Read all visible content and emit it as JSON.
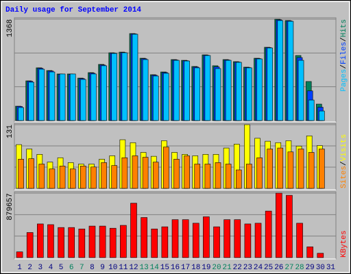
{
  "chart_data": [
    {
      "type": "bar",
      "title": "Daily usage for September 2014",
      "legend_separator": "/",
      "ylim": [
        0,
        1368
      ],
      "yticks": [
        1368
      ],
      "series": [
        {
          "name": "Hits",
          "color": "#00805c",
          "values": [
            194,
            536,
            712,
            675,
            629,
            629,
            573,
            647,
            758,
            915,
            924,
            1174,
            841,
            619,
            656,
            823,
            813,
            730,
            887,
            740,
            823,
            795,
            721,
            841,
            989,
            1368,
            1350,
            878,
            527,
            222,
            null
          ]
        },
        {
          "name": "Files",
          "color": "#0040ff",
          "values": [
            190,
            530,
            705,
            668,
            622,
            622,
            566,
            640,
            750,
            910,
            918,
            1170,
            834,
            612,
            648,
            818,
            808,
            722,
            882,
            724,
            818,
            790,
            716,
            836,
            985,
            1359,
            1345,
            850,
            400,
            180,
            null
          ]
        },
        {
          "name": "Pages",
          "color": "#00c0ff",
          "values": [
            176,
            518,
            693,
            656,
            629,
            629,
            555,
            629,
            740,
            906,
            915,
            1165,
            823,
            601,
            638,
            813,
            804,
            712,
            878,
            702,
            813,
            786,
            712,
            832,
            980,
            1350,
            1340,
            813,
            277,
            129,
            null
          ]
        }
      ]
    },
    {
      "type": "bar",
      "legend_separator": "/",
      "ylim": [
        0,
        131
      ],
      "yticks": [
        131
      ],
      "series": [
        {
          "name": "Visits",
          "color": "#ffff00",
          "values": [
            90,
            81,
            70,
            54,
            63,
            53,
            50,
            50,
            60,
            67,
            100,
            94,
            74,
            66,
            98,
            74,
            70,
            67,
            70,
            70,
            83,
            91,
            131,
            103,
            97,
            94,
            98,
            87,
            108,
            88,
            null
          ]
        },
        {
          "name": "Sites",
          "color": "#ff8000",
          "values": [
            60,
            61,
            50,
            40,
            46,
            40,
            46,
            44,
            53,
            47,
            63,
            67,
            64,
            54,
            85,
            60,
            67,
            50,
            50,
            53,
            50,
            38,
            50,
            63,
            81,
            83,
            75,
            81,
            74,
            81,
            null
          ]
        }
      ]
    },
    {
      "type": "bar",
      "ylim": [
        0,
        879657
      ],
      "yticks": [
        879657
      ],
      "categories": [
        "1",
        "2",
        "3",
        "4",
        "5",
        "6",
        "7",
        "8",
        "9",
        "10",
        "11",
        "12",
        "13",
        "14",
        "15",
        "16",
        "17",
        "18",
        "19",
        "20",
        "21",
        "22",
        "23",
        "24",
        "25",
        "26",
        "27",
        "28",
        "29",
        "30",
        "31"
      ],
      "category_colors": [
        "#000080",
        "#000080",
        "#000080",
        "#000080",
        "#000080",
        "#00805c",
        "#00805c",
        "#000080",
        "#000080",
        "#000080",
        "#000080",
        "#000080",
        "#00805c",
        "#00805c",
        "#000080",
        "#000080",
        "#000080",
        "#000080",
        "#000080",
        "#00805c",
        "#00805c",
        "#000080",
        "#000080",
        "#000080",
        "#000080",
        "#000080",
        "#00805c",
        "#00805c",
        "#000080",
        "#000080",
        "#000080"
      ],
      "series": [
        {
          "name": "KBytes",
          "color": "#ff0000",
          "values": [
            78192,
            342089,
            459376,
            449603,
            410507,
            410507,
            390959,
            430055,
            430055,
            400734,
            439829,
            742821,
            547342,
            390959,
            420281,
            518021,
            518021,
            469150,
            557116,
            420281,
            518021,
            518021,
            459376,
            469150,
            635308,
            879657,
            850336,
            469150,
            146610,
            58644,
            null
          ]
        }
      ]
    }
  ]
}
